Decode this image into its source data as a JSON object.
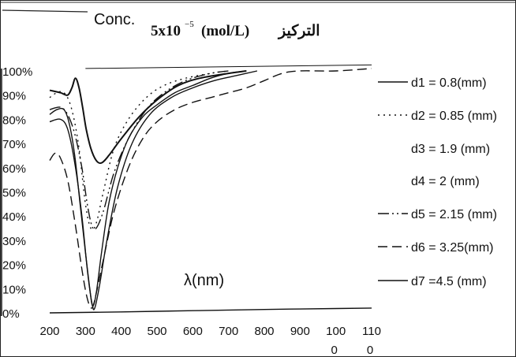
{
  "chart_data": {
    "type": "line",
    "title_prefix": "Conc.",
    "title_value": "5x10",
    "title_exponent": "−5",
    "title_unit": "(mol/L)",
    "title_arabic": "التركيز",
    "xlabel": "λ(nm)",
    "ylabel": "",
    "xlim": [
      200,
      1100
    ],
    "ylim": [
      0,
      100
    ],
    "x_ticks": [
      "200",
      "300",
      "400",
      "500",
      "600",
      "700",
      "800",
      "900",
      "100\n0",
      "110\n0"
    ],
    "x_tick_values": [
      200,
      300,
      400,
      500,
      600,
      700,
      800,
      900,
      1000,
      1100
    ],
    "y_ticks": [
      "0%",
      "10%",
      "20%",
      "30%",
      "40%",
      "50%",
      "60%",
      "70%",
      "80%",
      "90%",
      "100%"
    ],
    "grid": false,
    "legend_position": "right",
    "series": [
      {
        "name": "d1 = 0.8(mm)",
        "dash": "",
        "points": [
          [
            200,
            82
          ],
          [
            220,
            84
          ],
          [
            240,
            84
          ],
          [
            255,
            78
          ],
          [
            270,
            65
          ],
          [
            285,
            45
          ],
          [
            300,
            25
          ],
          [
            312,
            10
          ],
          [
            320,
            3
          ],
          [
            330,
            8
          ],
          [
            345,
            25
          ],
          [
            365,
            45
          ],
          [
            390,
            60
          ],
          [
            420,
            72
          ],
          [
            460,
            81
          ],
          [
            500,
            86
          ],
          [
            550,
            91
          ],
          [
            600,
            94
          ],
          [
            650,
            97
          ],
          [
            700,
            99
          ],
          [
            750,
            100
          ]
        ]
      },
      {
        "name": "d2 = 0.85 (mm)",
        "dash": "2 5",
        "points": [
          [
            200,
            89
          ],
          [
            220,
            91
          ],
          [
            240,
            91
          ],
          [
            260,
            85
          ],
          [
            280,
            70
          ],
          [
            300,
            45
          ],
          [
            315,
            35
          ],
          [
            330,
            37
          ],
          [
            350,
            50
          ],
          [
            380,
            68
          ],
          [
            420,
            80
          ],
          [
            470,
            89
          ],
          [
            520,
            94
          ],
          [
            580,
            97
          ],
          [
            650,
            99
          ],
          [
            700,
            100
          ]
        ]
      },
      {
        "name": "d3 = 1.9 (mm)",
        "dash": "",
        "no_legend_line": true,
        "points": [
          [
            200,
            92
          ],
          [
            230,
            91
          ],
          [
            250,
            90
          ],
          [
            262,
            93
          ],
          [
            272,
            97
          ],
          [
            282,
            93
          ],
          [
            292,
            85
          ],
          [
            302,
            76
          ],
          [
            315,
            68
          ],
          [
            330,
            63
          ],
          [
            345,
            62
          ],
          [
            365,
            65
          ],
          [
            400,
            72
          ],
          [
            450,
            81
          ],
          [
            500,
            88
          ],
          [
            560,
            94
          ],
          [
            620,
            97
          ],
          [
            700,
            99
          ],
          [
            750,
            100
          ]
        ]
      },
      {
        "name": "d4 = 2 (mm)",
        "dash": "",
        "no_legend_line": true,
        "points": [
          [
            200,
            79
          ],
          [
            230,
            80
          ],
          [
            250,
            76
          ],
          [
            270,
            62
          ],
          [
            290,
            40
          ],
          [
            305,
            18
          ],
          [
            318,
            4
          ],
          [
            326,
            2
          ],
          [
            340,
            12
          ],
          [
            360,
            30
          ],
          [
            390,
            52
          ],
          [
            430,
            70
          ],
          [
            480,
            82
          ],
          [
            540,
            89
          ],
          [
            600,
            93
          ],
          [
            660,
            96
          ],
          [
            720,
            98
          ],
          [
            780,
            100
          ]
        ]
      },
      {
        "name": "d5 = 2.15 (mm)",
        "dash": "14 4 2 4 2 4",
        "points": [
          [
            200,
            84
          ],
          [
            230,
            85
          ],
          [
            250,
            82
          ],
          [
            270,
            74
          ],
          [
            290,
            60
          ],
          [
            305,
            45
          ],
          [
            318,
            36
          ],
          [
            330,
            35
          ],
          [
            350,
            42
          ],
          [
            380,
            58
          ],
          [
            420,
            72
          ],
          [
            470,
            84
          ],
          [
            520,
            91
          ],
          [
            580,
            96
          ],
          [
            650,
            99
          ],
          [
            700,
            100
          ]
        ]
      },
      {
        "name": "d6 = 3.25(mm)",
        "dash": "12 6",
        "points": [
          [
            200,
            63
          ],
          [
            215,
            66
          ],
          [
            230,
            64
          ],
          [
            250,
            55
          ],
          [
            270,
            38
          ],
          [
            290,
            18
          ],
          [
            305,
            6
          ],
          [
            318,
            2
          ],
          [
            330,
            8
          ],
          [
            350,
            22
          ],
          [
            380,
            42
          ],
          [
            420,
            60
          ],
          [
            460,
            72
          ],
          [
            500,
            79
          ],
          [
            550,
            84
          ],
          [
            600,
            87
          ],
          [
            650,
            89
          ],
          [
            700,
            91
          ],
          [
            750,
            93
          ],
          [
            800,
            96
          ],
          [
            850,
            99
          ],
          [
            900,
            100
          ],
          [
            1000,
            100
          ],
          [
            1100,
            101
          ]
        ]
      },
      {
        "name": "d7 =4.5 (mm)",
        "dash": "",
        "points": [
          [
            200,
            0
          ],
          [
            400,
            0.4
          ],
          [
            600,
            0.9
          ],
          [
            800,
            1.4
          ],
          [
            1000,
            1.8
          ],
          [
            1100,
            2
          ]
        ]
      }
    ]
  }
}
